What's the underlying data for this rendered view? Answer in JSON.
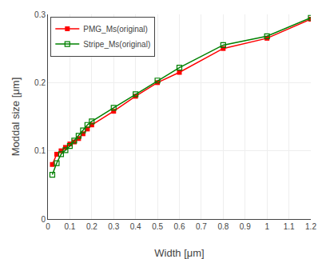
{
  "chart_data": {
    "type": "line",
    "x": [
      0.02,
      0.04,
      0.06,
      0.08,
      0.1,
      0.12,
      0.14,
      0.16,
      0.18,
      0.2,
      0.3,
      0.4,
      0.5,
      0.6,
      0.8,
      1.0,
      1.2
    ],
    "series": [
      {
        "name": "PMG_Ms(original)",
        "color": "#ff0000",
        "marker": "square",
        "values": [
          0.08,
          0.095,
          0.1,
          0.105,
          0.11,
          0.113,
          0.118,
          0.125,
          0.132,
          0.138,
          0.158,
          0.18,
          0.2,
          0.215,
          0.25,
          0.265,
          0.293
        ]
      },
      {
        "name": "Stripe_Ms(original)",
        "color": "#008000",
        "marker": "square-open",
        "values": [
          0.065,
          0.082,
          0.095,
          0.101,
          0.107,
          0.115,
          0.122,
          0.13,
          0.138,
          0.143,
          0.163,
          0.183,
          0.203,
          0.222,
          0.255,
          0.268,
          0.295
        ]
      }
    ],
    "x_label": "Width [μm]",
    "y_label": "Moddal size [μm]",
    "xlim": [
      0,
      1.2
    ],
    "ylim": [
      0,
      0.3
    ],
    "xticks": [
      0,
      0.1,
      0.2,
      0.3,
      0.4,
      0.5,
      0.6,
      0.7,
      0.8,
      0.9,
      1,
      1.1,
      1.2
    ],
    "yticks": [
      0,
      0.1,
      0.2,
      0.3
    ],
    "grid": true,
    "legend": "upper left"
  }
}
